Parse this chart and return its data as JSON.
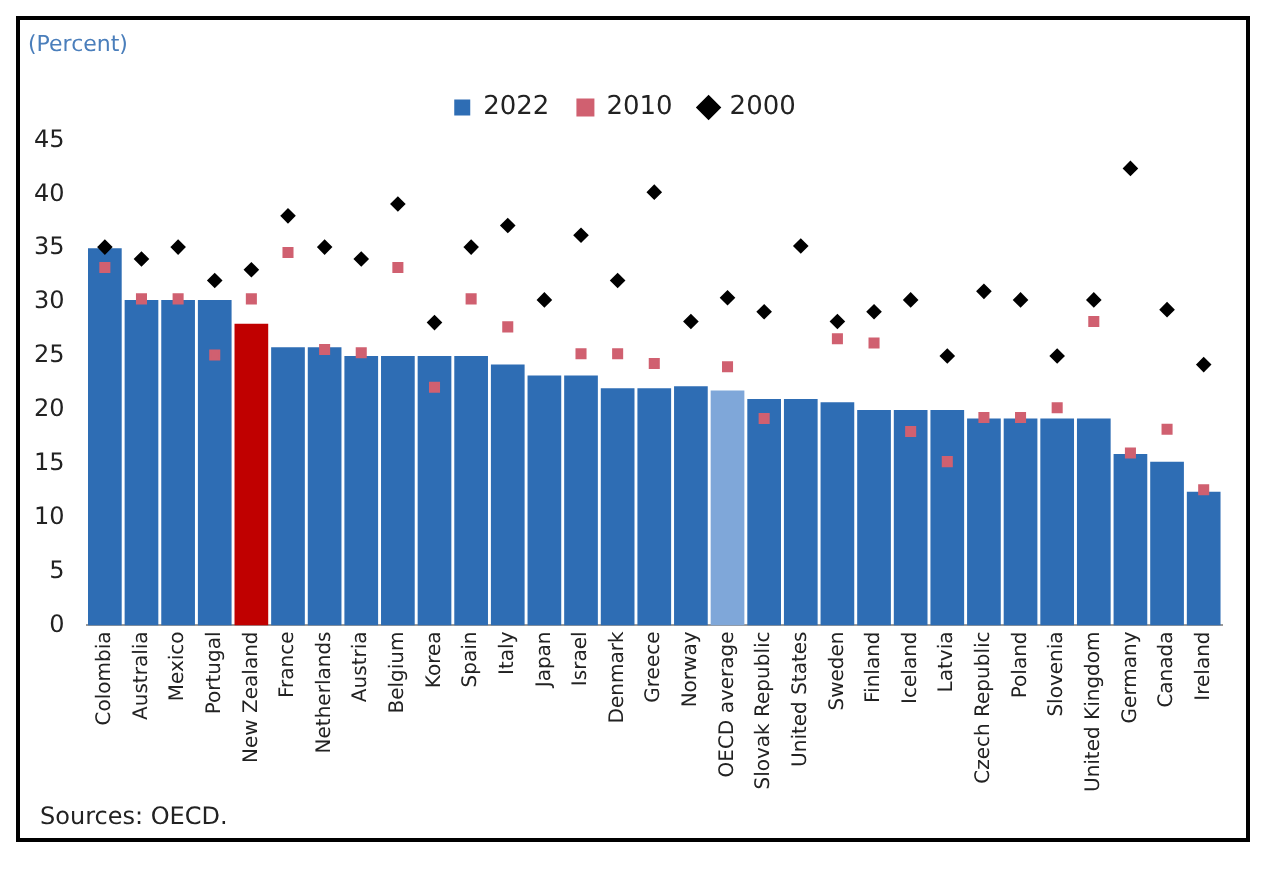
{
  "chart_data": {
    "type": "bar",
    "title": "(Percent)",
    "annotations": [
      "Sources: OECD."
    ],
    "categories": [
      "Colombia",
      "Australia",
      "Mexico",
      "Portugal",
      "New Zealand",
      "France",
      "Netherlands",
      "Austria",
      "Belgium",
      "Korea",
      "Spain",
      "Italy",
      "Japan",
      "Israel",
      "Denmark",
      "Greece",
      "Norway",
      "OECD average",
      "Slovak Republic",
      "United States",
      "Sweden",
      "Finland",
      "Iceland",
      "Latvia",
      "Czech Republic",
      "Poland",
      "Slovenia",
      "United Kingdom",
      "Germany",
      "Canada",
      "Ireland"
    ],
    "series": [
      {
        "name": "2022",
        "color": "#2e6db4",
        "colors": [
          "#2e6db4",
          "#2e6db4",
          "#2e6db4",
          "#2e6db4",
          "#c00000",
          "#2e6db4",
          "#2e6db4",
          "#2e6db4",
          "#2e6db4",
          "#2e6db4",
          "#2e6db4",
          "#2e6db4",
          "#2e6db4",
          "#2e6db4",
          "#2e6db4",
          "#2e6db4",
          "#2e6db4",
          "#7fa7d9",
          "#2e6db4",
          "#2e6db4",
          "#2e6db4",
          "#2e6db4",
          "#2e6db4",
          "#2e6db4",
          "#2e6db4",
          "#2e6db4",
          "#2e6db4",
          "#2e6db4",
          "#2e6db4",
          "#2e6db4",
          "#2e6db4"
        ],
        "values": [
          35,
          30.2,
          30.2,
          30.2,
          28,
          25.8,
          25.8,
          25,
          25,
          25,
          25,
          24.2,
          23.2,
          23.2,
          22,
          22,
          22.2,
          21.8,
          21,
          21,
          20.7,
          20,
          20,
          20,
          19.2,
          19.2,
          19.2,
          19.2,
          15.9,
          15.2,
          12.4
        ]
      },
      {
        "name": "2010",
        "type": "scatter",
        "marker": "square",
        "color": "#d06070",
        "values": [
          33.2,
          30.3,
          30.3,
          25.1,
          30.3,
          34.6,
          25.6,
          25.3,
          33.2,
          22.1,
          30.3,
          27.7,
          null,
          25.2,
          25.2,
          24.3,
          null,
          24,
          19.2,
          null,
          26.6,
          26.2,
          18,
          15.2,
          19.3,
          19.3,
          20.2,
          28.2,
          16,
          18.2,
          12.6
        ]
      },
      {
        "name": "2000",
        "type": "scatter",
        "marker": "diamond",
        "color": "#000000",
        "values": [
          35.1,
          34,
          35.1,
          32,
          33,
          38,
          35.1,
          34,
          39.1,
          28.1,
          35.1,
          37.1,
          30.2,
          36.2,
          32,
          40.2,
          28.2,
          30.4,
          29.1,
          35.2,
          28.2,
          29.1,
          30.2,
          25,
          31,
          30.2,
          25,
          30.2,
          42.4,
          29.3,
          24.2
        ]
      }
    ],
    "ylim": [
      0,
      45
    ],
    "yticks": [
      0,
      5,
      10,
      15,
      20,
      25,
      30,
      35,
      40,
      45
    ],
    "grid": false,
    "legend": "top"
  }
}
